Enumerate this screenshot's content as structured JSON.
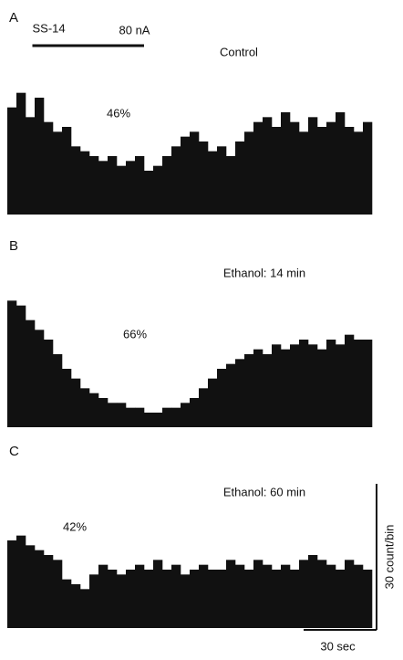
{
  "chart_data": {
    "type": "histogram",
    "xlim": [
      0,
      160
    ],
    "bins": [
      0,
      4,
      8,
      12,
      16,
      20,
      24,
      28,
      32,
      36,
      40,
      44,
      48,
      52,
      56,
      60,
      64,
      68,
      72,
      76,
      80,
      84,
      88,
      92,
      96,
      100,
      104,
      108,
      112,
      116,
      120,
      124,
      128,
      132,
      136,
      140,
      144,
      148,
      152,
      156,
      160
    ],
    "color": "#111111",
    "stimulus": {
      "label": "SS-14",
      "current": "80 nA",
      "start": 11,
      "end": 60
    },
    "y_scale": {
      "value": 30,
      "label": "30 count/bin"
    },
    "x_scale": {
      "value": 30,
      "label": "30 sec"
    },
    "panels": [
      {
        "label": "A",
        "condition": "Control",
        "annotation": "46%",
        "values": [
          22,
          25,
          20,
          24,
          19,
          17,
          18,
          14,
          13,
          12,
          11,
          12,
          10,
          11,
          12,
          9,
          10,
          12,
          14,
          16,
          17,
          15,
          13,
          14,
          12,
          15,
          17,
          19,
          20,
          18,
          21,
          19,
          17,
          20,
          18,
          19,
          21,
          18,
          17,
          19
        ]
      },
      {
        "label": "B",
        "condition": "Ethanol: 14 min",
        "annotation": "66%",
        "values": [
          26,
          25,
          22,
          20,
          18,
          15,
          12,
          10,
          8,
          7,
          6,
          5,
          5,
          4,
          4,
          3,
          3,
          4,
          4,
          5,
          6,
          8,
          10,
          12,
          13,
          14,
          15,
          16,
          15,
          17,
          16,
          17,
          18,
          17,
          16,
          18,
          17,
          19,
          18,
          18
        ]
      },
      {
        "label": "C",
        "condition": "Ethanol: 60 min",
        "annotation": "42%",
        "values": [
          18,
          19,
          17,
          16,
          15,
          14,
          10,
          9,
          8,
          11,
          13,
          12,
          11,
          12,
          13,
          12,
          14,
          12,
          13,
          11,
          12,
          13,
          12,
          12,
          14,
          13,
          12,
          14,
          13,
          12,
          13,
          12,
          14,
          15,
          14,
          13,
          12,
          14,
          13,
          12
        ]
      }
    ]
  }
}
